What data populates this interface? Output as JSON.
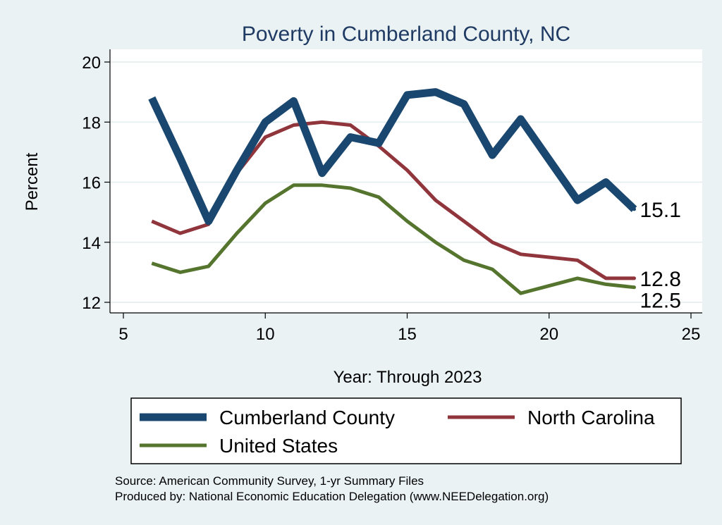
{
  "chart_data": {
    "type": "line",
    "title": "Poverty in Cumberland County, NC",
    "xlabel": "Year: Through 2023",
    "ylabel": "Percent",
    "xlim": [
      5,
      25
    ],
    "ylim": [
      12,
      20
    ],
    "xticks": [
      "5",
      "10",
      "15",
      "20",
      "25"
    ],
    "yticks": [
      "12",
      "14",
      "16",
      "18",
      "20"
    ],
    "grid": true,
    "legend_position": "bottom",
    "series": [
      {
        "name": "Cumberland County",
        "color": "#1a476f",
        "x": [
          6,
          7,
          8,
          9,
          10,
          11,
          12,
          13,
          14,
          15,
          16,
          17,
          18,
          19,
          21,
          22,
          23
        ],
        "values": [
          18.8,
          16.8,
          14.7,
          16.4,
          18.0,
          18.7,
          16.3,
          17.5,
          17.3,
          18.9,
          19.0,
          18.6,
          16.9,
          18.1,
          15.4,
          16.0,
          15.1
        ],
        "end_label": "15.1"
      },
      {
        "name": "North Carolina",
        "color": "#90353b",
        "x": [
          6,
          7,
          8,
          9,
          10,
          11,
          12,
          13,
          14,
          15,
          16,
          17,
          18,
          19,
          21,
          22,
          23
        ],
        "values": [
          14.7,
          14.3,
          14.6,
          16.3,
          17.5,
          17.9,
          18.0,
          17.9,
          17.2,
          16.4,
          15.4,
          14.7,
          14.0,
          13.6,
          13.4,
          12.8,
          12.8
        ],
        "end_label": "12.8"
      },
      {
        "name": "United States",
        "color": "#55752f",
        "x": [
          6,
          7,
          8,
          9,
          10,
          11,
          12,
          13,
          14,
          15,
          16,
          17,
          18,
          19,
          21,
          22,
          23
        ],
        "values": [
          13.3,
          13.0,
          13.2,
          14.3,
          15.3,
          15.9,
          15.9,
          15.8,
          15.5,
          14.7,
          14.0,
          13.4,
          13.1,
          12.3,
          12.8,
          12.6,
          12.5
        ],
        "end_label": "12.5"
      }
    ]
  },
  "footnotes": {
    "source": "Source: American Community Survey, 1-yr Summary Files",
    "produced_by": "Produced by: National Economic Education Delegation (www.NEEDelegation.org)"
  }
}
